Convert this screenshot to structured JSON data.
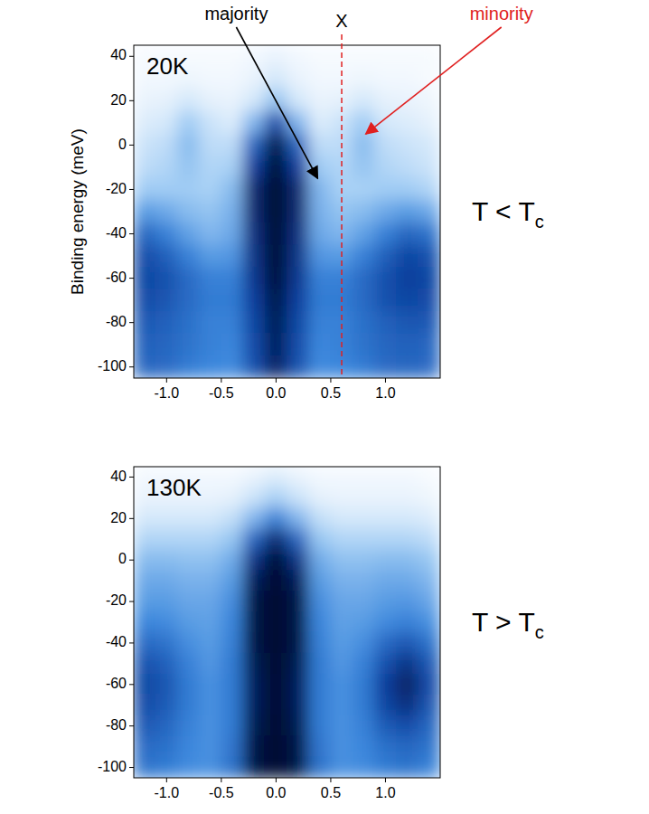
{
  "chart_data": [
    {
      "type": "heatmap",
      "title": "20K",
      "ylabel": "Binding energy (meV)",
      "side_label": {
        "text": "T < T",
        "subscript": "c"
      },
      "xlim": [
        -1.3,
        1.5
      ],
      "ylim": [
        -105,
        45
      ],
      "xticks": [
        {
          "value": -1,
          "label": "-1.0"
        },
        {
          "value": -0.5,
          "label": "-0.5"
        },
        {
          "value": 0,
          "label": "0.0"
        },
        {
          "value": 0.5,
          "label": "0.5"
        },
        {
          "value": 1,
          "label": "1.0"
        }
      ],
      "yticks": [
        40,
        20,
        0,
        -20,
        -40,
        -60,
        -80,
        -100
      ],
      "color_range": [
        0,
        1
      ],
      "x": [
        -1.2,
        -1.0,
        -0.8,
        -0.6,
        -0.4,
        -0.2,
        0,
        0.2,
        0.4,
        0.6,
        0.8,
        1.0,
        1.2,
        1.4
      ],
      "y": [
        40,
        30,
        20,
        10,
        0,
        -10,
        -20,
        -30,
        -40,
        -50,
        -60,
        -70,
        -80,
        -90,
        -100
      ],
      "cells": [
        [
          0.02,
          0.02,
          0.02,
          0.02,
          0.02,
          0.03,
          0.05,
          0.03,
          0.02,
          0.02,
          0.02,
          0.02,
          0.02,
          0.02
        ],
        [
          0.03,
          0.03,
          0.04,
          0.03,
          0.03,
          0.05,
          0.1,
          0.05,
          0.03,
          0.03,
          0.04,
          0.03,
          0.03,
          0.02
        ],
        [
          0.05,
          0.06,
          0.1,
          0.06,
          0.05,
          0.1,
          0.25,
          0.1,
          0.05,
          0.06,
          0.1,
          0.06,
          0.05,
          0.04
        ],
        [
          0.08,
          0.1,
          0.22,
          0.12,
          0.08,
          0.3,
          0.7,
          0.3,
          0.08,
          0.12,
          0.22,
          0.1,
          0.08,
          0.06
        ],
        [
          0.12,
          0.15,
          0.28,
          0.15,
          0.15,
          0.6,
          0.95,
          0.6,
          0.15,
          0.15,
          0.28,
          0.15,
          0.12,
          0.1
        ],
        [
          0.15,
          0.18,
          0.25,
          0.18,
          0.2,
          0.75,
          1.0,
          0.75,
          0.22,
          0.18,
          0.25,
          0.18,
          0.15,
          0.12
        ],
        [
          0.22,
          0.22,
          0.22,
          0.2,
          0.28,
          0.85,
          1.0,
          0.85,
          0.3,
          0.2,
          0.2,
          0.22,
          0.22,
          0.18
        ],
        [
          0.4,
          0.35,
          0.28,
          0.25,
          0.32,
          0.85,
          1.0,
          0.85,
          0.32,
          0.25,
          0.28,
          0.35,
          0.4,
          0.35
        ],
        [
          0.6,
          0.5,
          0.38,
          0.3,
          0.35,
          0.82,
          1.0,
          0.82,
          0.35,
          0.3,
          0.38,
          0.5,
          0.6,
          0.55
        ],
        [
          0.7,
          0.62,
          0.5,
          0.4,
          0.42,
          0.8,
          1.0,
          0.8,
          0.42,
          0.4,
          0.5,
          0.62,
          0.72,
          0.68
        ],
        [
          0.72,
          0.68,
          0.58,
          0.5,
          0.5,
          0.78,
          0.98,
          0.78,
          0.5,
          0.5,
          0.58,
          0.68,
          0.75,
          0.72
        ],
        [
          0.7,
          0.66,
          0.58,
          0.52,
          0.52,
          0.75,
          0.95,
          0.75,
          0.52,
          0.52,
          0.58,
          0.68,
          0.72,
          0.7
        ],
        [
          0.65,
          0.62,
          0.56,
          0.5,
          0.5,
          0.72,
          0.92,
          0.72,
          0.5,
          0.5,
          0.56,
          0.62,
          0.66,
          0.65
        ],
        [
          0.62,
          0.6,
          0.55,
          0.5,
          0.48,
          0.7,
          0.9,
          0.7,
          0.48,
          0.5,
          0.55,
          0.6,
          0.62,
          0.6
        ],
        [
          0.6,
          0.58,
          0.52,
          0.48,
          0.46,
          0.68,
          0.88,
          0.68,
          0.46,
          0.48,
          0.52,
          0.58,
          0.6,
          0.58
        ]
      ],
      "annotations": [
        {
          "text": "majority",
          "x": 0.38,
          "y": -15,
          "color": "#000000"
        },
        {
          "text": "X",
          "x": 0.6,
          "color": "#e02020",
          "line_style": "dashed"
        },
        {
          "text": "minority",
          "x": 0.82,
          "y": 5,
          "color": "#e02020"
        }
      ]
    },
    {
      "type": "heatmap",
      "title": "130K",
      "side_label": {
        "text": "T > T",
        "subscript": "c"
      },
      "xlim": [
        -1.3,
        1.5
      ],
      "ylim": [
        -105,
        45
      ],
      "xticks": [
        {
          "value": -1,
          "label": "-1.0"
        },
        {
          "value": -0.5,
          "label": "-0.5"
        },
        {
          "value": 0,
          "label": "0.0"
        },
        {
          "value": 0.5,
          "label": "0.5"
        },
        {
          "value": 1,
          "label": "1.0"
        }
      ],
      "yticks": [
        40,
        20,
        0,
        -20,
        -40,
        -60,
        -80,
        -100
      ],
      "color_range": [
        0,
        1
      ],
      "x": [
        -1.2,
        -1.0,
        -0.8,
        -0.6,
        -0.4,
        -0.2,
        0,
        0.2,
        0.4,
        0.6,
        0.8,
        1.0,
        1.2,
        1.4
      ],
      "y": [
        40,
        30,
        20,
        10,
        0,
        -10,
        -20,
        -30,
        -40,
        -50,
        -60,
        -70,
        -80,
        -90,
        -100
      ],
      "cells": [
        [
          0.03,
          0.03,
          0.03,
          0.03,
          0.03,
          0.05,
          0.08,
          0.05,
          0.03,
          0.03,
          0.03,
          0.03,
          0.03,
          0.02
        ],
        [
          0.05,
          0.05,
          0.05,
          0.05,
          0.06,
          0.12,
          0.2,
          0.12,
          0.06,
          0.05,
          0.05,
          0.05,
          0.05,
          0.04
        ],
        [
          0.1,
          0.1,
          0.1,
          0.1,
          0.14,
          0.3,
          0.5,
          0.3,
          0.14,
          0.1,
          0.1,
          0.1,
          0.1,
          0.08
        ],
        [
          0.18,
          0.18,
          0.18,
          0.18,
          0.24,
          0.6,
          0.85,
          0.6,
          0.24,
          0.18,
          0.18,
          0.18,
          0.18,
          0.15
        ],
        [
          0.28,
          0.28,
          0.26,
          0.26,
          0.34,
          0.8,
          1.0,
          0.8,
          0.34,
          0.26,
          0.26,
          0.28,
          0.28,
          0.24
        ],
        [
          0.35,
          0.35,
          0.32,
          0.32,
          0.4,
          0.9,
          1.0,
          0.9,
          0.4,
          0.32,
          0.32,
          0.35,
          0.35,
          0.3
        ],
        [
          0.4,
          0.4,
          0.36,
          0.36,
          0.45,
          0.95,
          1.0,
          0.95,
          0.45,
          0.36,
          0.36,
          0.4,
          0.42,
          0.36
        ],
        [
          0.48,
          0.46,
          0.4,
          0.38,
          0.48,
          0.95,
          1.0,
          0.95,
          0.48,
          0.38,
          0.4,
          0.46,
          0.5,
          0.44
        ],
        [
          0.58,
          0.55,
          0.45,
          0.4,
          0.5,
          0.95,
          1.0,
          0.95,
          0.5,
          0.4,
          0.45,
          0.58,
          0.65,
          0.55
        ],
        [
          0.68,
          0.62,
          0.5,
          0.42,
          0.52,
          0.92,
          1.0,
          0.92,
          0.52,
          0.42,
          0.5,
          0.68,
          0.8,
          0.65
        ],
        [
          0.72,
          0.66,
          0.52,
          0.44,
          0.52,
          0.9,
          1.0,
          0.9,
          0.52,
          0.44,
          0.52,
          0.75,
          0.88,
          0.7
        ],
        [
          0.7,
          0.64,
          0.52,
          0.44,
          0.52,
          0.9,
          1.0,
          0.9,
          0.52,
          0.44,
          0.52,
          0.72,
          0.82,
          0.66
        ],
        [
          0.65,
          0.6,
          0.5,
          0.44,
          0.52,
          0.92,
          1.0,
          0.92,
          0.52,
          0.44,
          0.5,
          0.64,
          0.7,
          0.6
        ],
        [
          0.58,
          0.56,
          0.48,
          0.44,
          0.54,
          0.95,
          1.0,
          0.95,
          0.54,
          0.44,
          0.48,
          0.56,
          0.6,
          0.55
        ],
        [
          0.55,
          0.52,
          0.46,
          0.44,
          0.55,
          0.95,
          1.0,
          0.95,
          0.55,
          0.44,
          0.46,
          0.52,
          0.55,
          0.5
        ]
      ]
    }
  ]
}
